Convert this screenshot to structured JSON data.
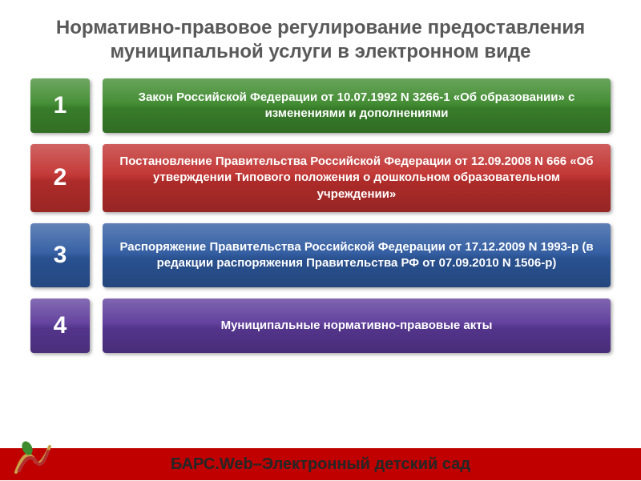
{
  "title": "Нормативно-правовое регулирование предоставления муниципальной услуги в электронном виде",
  "rows": [
    {
      "num": "1",
      "text": "Закон Российской Федерации от 10.07.1992 N 3266-1 «Об образовании» с изменениями и дополнениями",
      "bg": "#3e8a2e",
      "tall": false
    },
    {
      "num": "2",
      "text": "Постановление Правительства Российской Федерации от 12.09.2008 N 666 «Об утверждении Типового положения о дошкольном образовательном учреждении»",
      "bg": "#c0302e",
      "tall": true
    },
    {
      "num": "3",
      "text": "Распоряжение Правительства Российской Федерации от 17.12.2009   N 1993-р (в редакции распоряжения Правительства РФ от 07.09.2010  N 1506-р)",
      "bg": "#2e5aa0",
      "tall": true
    },
    {
      "num": "4",
      "text": "Муниципальные нормативно-правовые акты",
      "bg": "#5c3a9a",
      "tall": false
    }
  ],
  "footer": {
    "text": "БАРС.Web–Электронный детский сад",
    "bar_color": "#c00000",
    "text_color": "#262626"
  },
  "colors": {
    "title_color": "#595959",
    "slide_bg": "#ffffff"
  }
}
